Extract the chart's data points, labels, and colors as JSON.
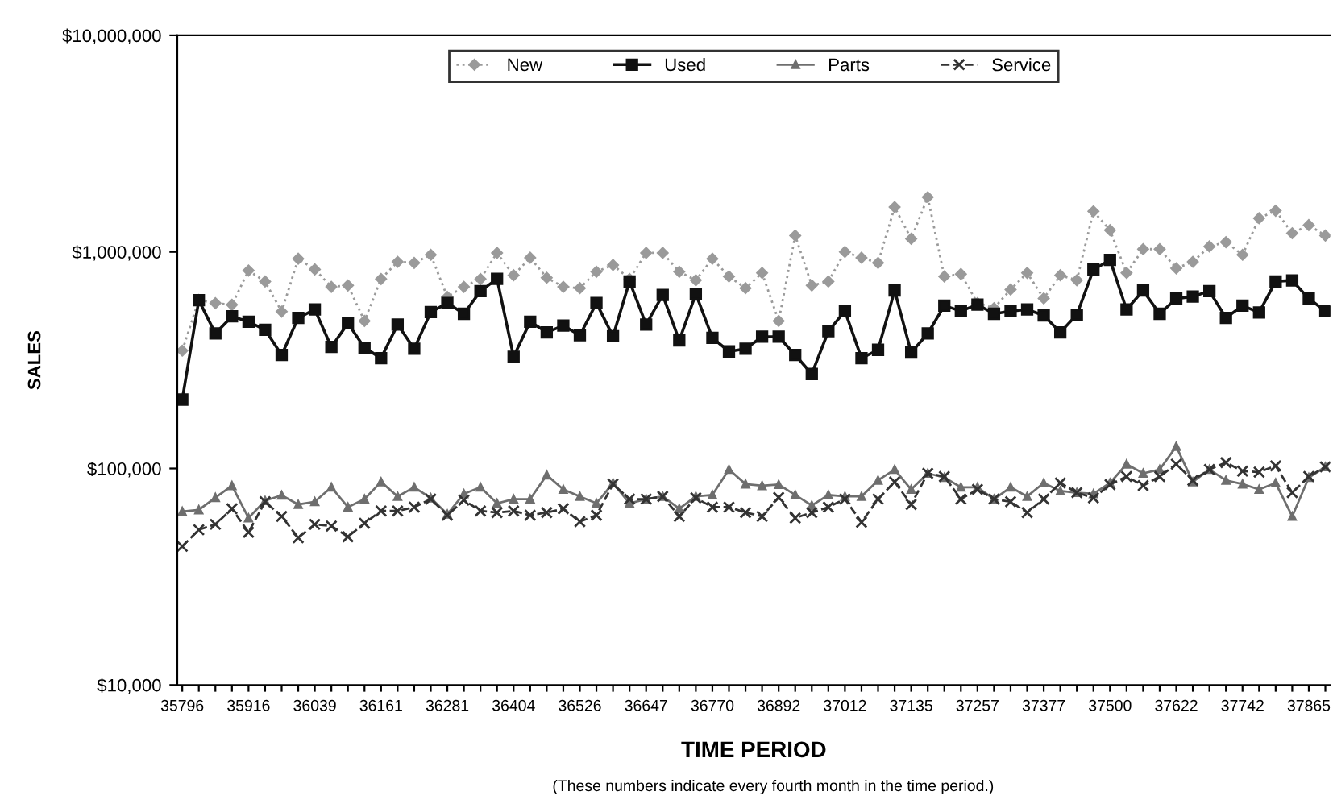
{
  "chart_data": {
    "type": "line",
    "xlabel": "TIME PERIOD",
    "ylabel": "SALES",
    "annotations": [
      "(These numbers indicate every fourth month in the time period.)"
    ],
    "categories": [
      "35796",
      null,
      null,
      null,
      "35916",
      null,
      null,
      null,
      "36039",
      null,
      null,
      null,
      "36161",
      null,
      null,
      null,
      "36281",
      null,
      null,
      null,
      "36404",
      null,
      null,
      null,
      "36526",
      null,
      null,
      null,
      "36647",
      null,
      null,
      null,
      "36770",
      null,
      null,
      null,
      "36892",
      null,
      null,
      null,
      "37012",
      null,
      null,
      null,
      "37135",
      null,
      null,
      null,
      "37257",
      null,
      null,
      null,
      "37377",
      null,
      null,
      null,
      "37500",
      null,
      null,
      null,
      "37622",
      null,
      null,
      null,
      "37742",
      null,
      null,
      null,
      "37865",
      null
    ],
    "log": true,
    "ylim": [
      10000,
      10000000
    ],
    "yticks": [
      {
        "value": 10000,
        "label": "$10,000"
      },
      {
        "value": 100000,
        "label": "$100,000"
      },
      {
        "value": 1000000,
        "label": "$1,000,000"
      },
      {
        "value": 10000000,
        "label": "$10,000,000"
      }
    ],
    "grid": false,
    "legend": "top",
    "series": [
      {
        "name": "New",
        "color": "#9a9a9a",
        "marker": "diamond",
        "line_style": "dotted",
        "values": [
          350000,
          600000,
          580000,
          570000,
          820000,
          730000,
          530000,
          930000,
          830000,
          690000,
          700000,
          480000,
          750000,
          900000,
          890000,
          970000,
          620000,
          690000,
          750000,
          990000,
          780000,
          940000,
          760000,
          690000,
          680000,
          810000,
          870000,
          750000,
          990000,
          990000,
          810000,
          740000,
          930000,
          770000,
          680000,
          800000,
          480000,
          1190000,
          700000,
          730000,
          1000000,
          940000,
          890000,
          1610000,
          1150000,
          1790000,
          770000,
          790000,
          580000,
          550000,
          670000,
          800000,
          610000,
          780000,
          740000,
          1540000,
          1260000,
          800000,
          1030000,
          1030000,
          840000,
          900000,
          1060000,
          1110000,
          970000,
          1430000,
          1550000,
          1220000,
          1330000,
          1190000
        ]
      },
      {
        "name": "Used",
        "color": "#111111",
        "marker": "square",
        "line_style": "solid",
        "values": [
          208000,
          598000,
          420000,
          504000,
          476000,
          437000,
          334000,
          496000,
          542000,
          364000,
          468000,
          361000,
          323000,
          462000,
          357000,
          527000,
          581000,
          518000,
          659000,
          751000,
          328000,
          476000,
          425000,
          457000,
          412000,
          581000,
          408000,
          731000,
          462000,
          633000,
          390000,
          640000,
          401000,
          347000,
          357000,
          406000,
          406000,
          334000,
          273000,
          430000,
          533000,
          323000,
          353000,
          663000,
          343000,
          420000,
          565000,
          533000,
          571000,
          518000,
          533000,
          542000,
          509000,
          425000,
          513000,
          828000,
          918000,
          542000,
          663000,
          518000,
          609000,
          622000,
          659000,
          496000,
          565000,
          525000,
          731000,
          738000,
          609000,
          533000
        ]
      },
      {
        "name": "Parts",
        "color": "#6e6e6e",
        "marker": "triangle",
        "line_style": "solid",
        "values": [
          63300,
          64400,
          73400,
          83300,
          59100,
          71000,
          75200,
          68200,
          70200,
          81900,
          66300,
          72200,
          86700,
          74300,
          81900,
          73100,
          61500,
          76400,
          81900,
          69000,
          72200,
          72200,
          93300,
          80000,
          74300,
          69000,
          85700,
          69000,
          72200,
          74300,
          65200,
          74300,
          75500,
          98900,
          84700,
          83300,
          84300,
          75500,
          67500,
          75500,
          74300,
          74300,
          88200,
          98900,
          80000,
          95000,
          90800,
          81900,
          81900,
          72200,
          81900,
          74300,
          85700,
          78700,
          77300,
          76400,
          85700,
          104700,
          95000,
          98900,
          126400,
          86700,
          98900,
          88200,
          84700,
          80000,
          85700,
          60100,
          90800,
          101700
        ]
      },
      {
        "name": "Service",
        "color": "#333333",
        "marker": "cross",
        "line_style": "dashed",
        "values": [
          43700,
          52100,
          55200,
          65200,
          50700,
          70200,
          60100,
          47900,
          55200,
          54200,
          48400,
          55800,
          63700,
          63700,
          66300,
          72200,
          60800,
          71400,
          63700,
          62600,
          63700,
          60800,
          62600,
          65200,
          56800,
          60800,
          84700,
          72200,
          72200,
          74300,
          60100,
          73100,
          66300,
          66300,
          62600,
          60100,
          73400,
          59100,
          62600,
          66300,
          72200,
          56500,
          72200,
          86700,
          68200,
          95000,
          91800,
          72200,
          80000,
          72200,
          70200,
          62600,
          72200,
          85700,
          77300,
          73100,
          84300,
          91800,
          83300,
          91800,
          104700,
          88200,
          98900,
          106500,
          97200,
          96200,
          102900,
          77300,
          91800,
          101700
        ]
      }
    ]
  }
}
